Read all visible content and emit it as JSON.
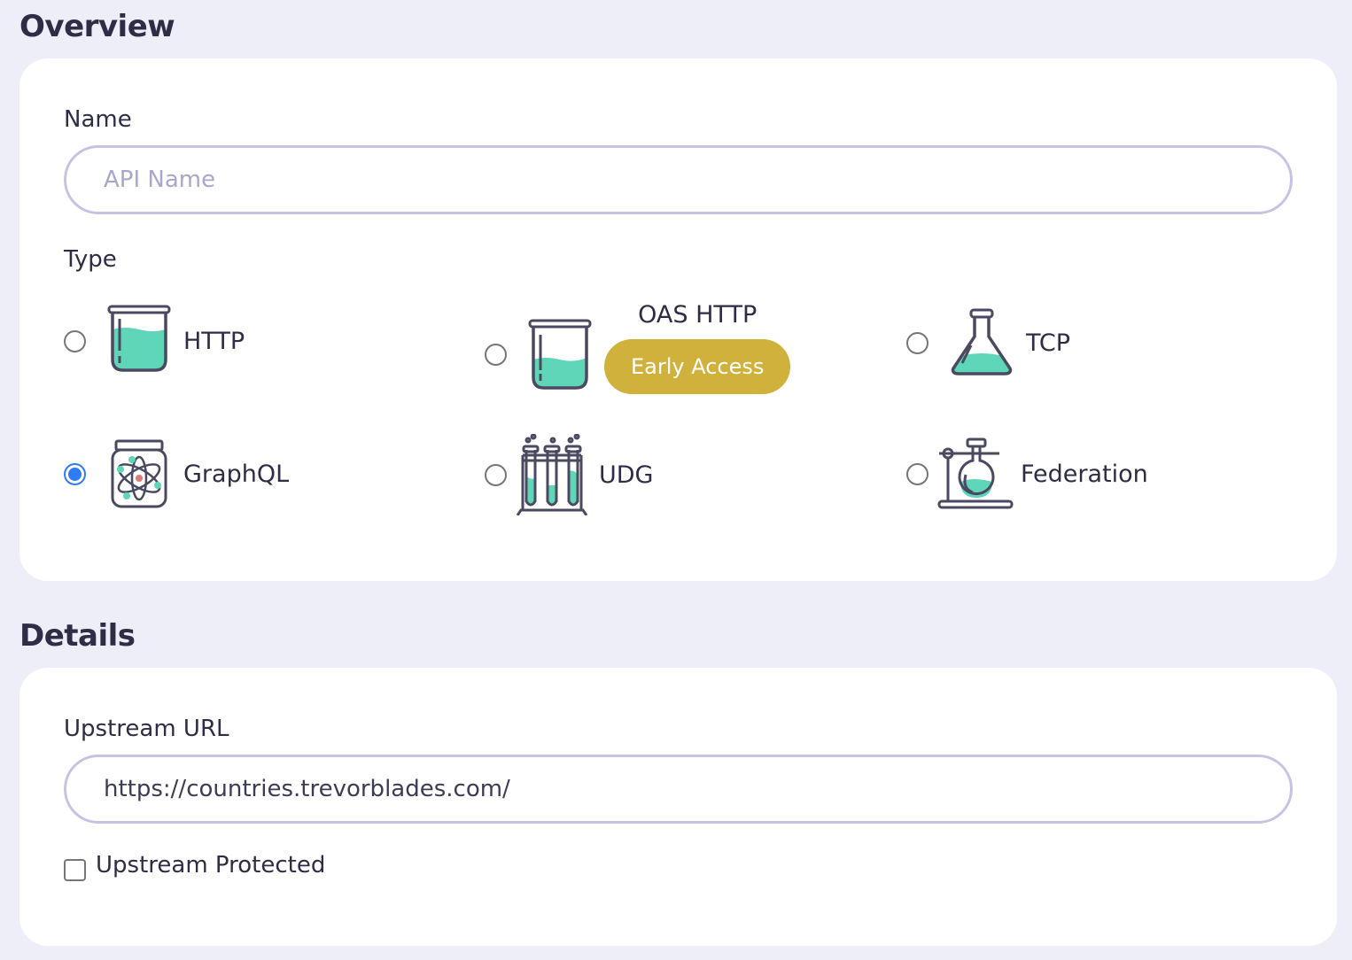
{
  "overview": {
    "title": "Overview",
    "name_label": "Name",
    "name_placeholder": "API Name",
    "name_value": "",
    "type_label": "Type",
    "types": [
      {
        "label": "HTTP",
        "icon": "beaker-icon",
        "selected": false
      },
      {
        "label": "OAS HTTP",
        "icon": "beaker-icon",
        "selected": false,
        "badge": "Early Access"
      },
      {
        "label": "TCP",
        "icon": "flask-icon",
        "selected": false
      },
      {
        "label": "GraphQL",
        "icon": "atom-jar-icon",
        "selected": true
      },
      {
        "label": "UDG",
        "icon": "test-tubes-icon",
        "selected": false
      },
      {
        "label": "Federation",
        "icon": "round-flask-stand-icon",
        "selected": false
      }
    ]
  },
  "details": {
    "title": "Details",
    "upstream_label": "Upstream URL",
    "upstream_value": "https://countries.trevorblades.com/",
    "protected_label": "Upstream Protected",
    "protected_checked": false
  },
  "colors": {
    "accent": "#2f7bf5",
    "liquid": "#5fd6b8",
    "badge": "#cfb13c",
    "background": "#eeeef9"
  }
}
